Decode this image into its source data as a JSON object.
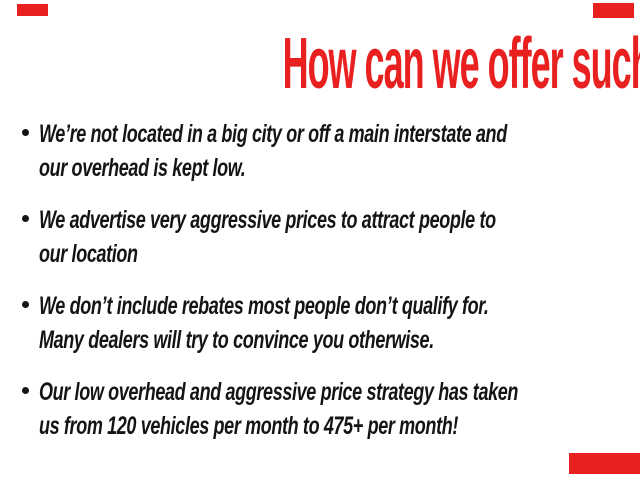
{
  "slide": {
    "background_color": "#ffffff",
    "accent_red": "#e8201f",
    "text_color": "#141414",
    "title": "How can we offer such low prices?",
    "bullets": [
      {
        "lines": [
          "We’re not located in a big city or off a main interstate and",
          "our overhead is kept low."
        ]
      },
      {
        "lines": [
          "We advertise very aggressive prices to attract people to",
          "our location"
        ]
      },
      {
        "lines": [
          "We don’t include rebates most people don’t qualify for.",
          "Many dealers will try to convince you otherwise."
        ]
      },
      {
        "lines": [
          "Our low overhead and aggressive price strategy has taken",
          "us from 120 vehicles per month to 475+ per month!"
        ]
      }
    ],
    "corner_accents": [
      "top-left",
      "top-right",
      "bottom-right"
    ]
  }
}
